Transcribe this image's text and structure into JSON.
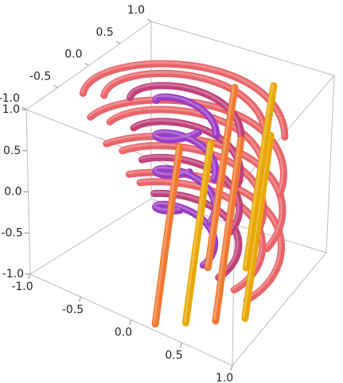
{
  "chart_data": {
    "type": "stream3d",
    "xlim": [
      -1,
      1
    ],
    "ylim": [
      -1,
      1
    ],
    "zlim": [
      -1,
      1
    ],
    "xticks": [
      {
        "value": -1,
        "label": "-1.0"
      },
      {
        "value": -0.5,
        "label": "-0.5"
      },
      {
        "value": 0,
        "label": "0.0"
      },
      {
        "value": 0.5,
        "label": "0.5"
      },
      {
        "value": 1,
        "label": "1.0"
      }
    ],
    "yticks": [
      {
        "value": -1,
        "label": "-1.0"
      },
      {
        "value": -0.5,
        "label": "-0.5"
      },
      {
        "value": 0,
        "label": "0.0"
      },
      {
        "value": 0.5,
        "label": "0.5"
      },
      {
        "value": 1,
        "label": "1.0"
      }
    ],
    "zticks": [
      {
        "value": -1,
        "label": "-1.0"
      },
      {
        "value": -0.5,
        "label": "-0.5"
      },
      {
        "value": 0,
        "label": "0.0"
      },
      {
        "value": 0.5,
        "label": "0.5"
      },
      {
        "value": 1,
        "label": "1.0"
      }
    ]
  }
}
